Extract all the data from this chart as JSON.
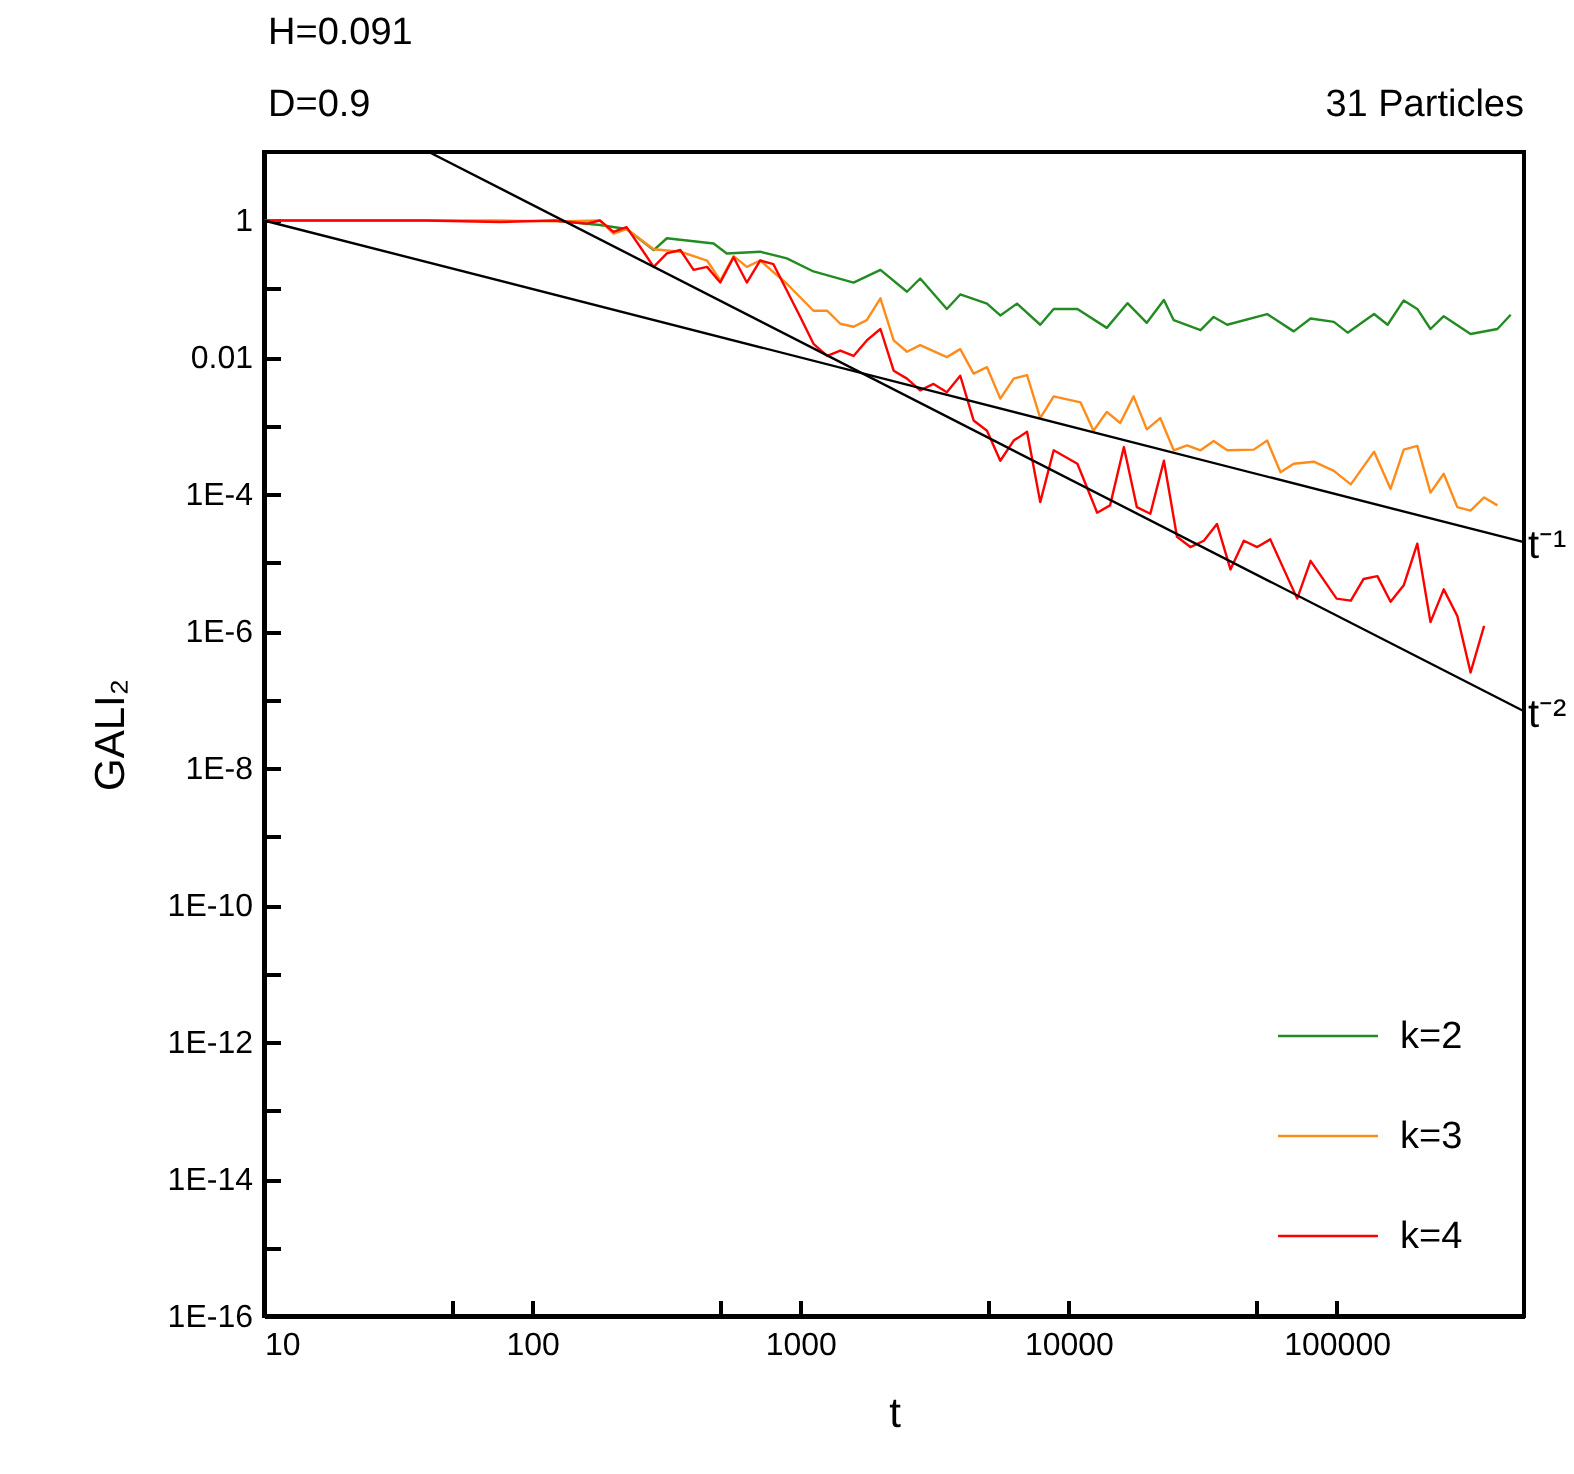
{
  "chart_data": {
    "type": "line",
    "xlabel": "t",
    "ylabel": "GALI₂",
    "log": "xy",
    "grid": false,
    "legend": "bottom right",
    "marker": "none",
    "line_style": "solid",
    "annotations": [
      "H=0.091",
      "D=0.9",
      "31 Particles"
    ],
    "xlim": [
      10,
      500000
    ],
    "xticks": [
      10,
      {
        "value": 50,
        "label": null
      },
      100,
      {
        "value": 500,
        "label": null
      },
      1000,
      {
        "value": 5000,
        "label": null
      },
      10000,
      {
        "value": 50000,
        "label": null
      },
      100000
    ],
    "ylim": [
      1e-16,
      10
    ],
    "yticks": [
      1,
      {
        "value": 0.1,
        "label": null
      },
      0.01,
      {
        "value": 0.001,
        "label": null
      },
      {
        "value": 0.0001,
        "label": "1E-4"
      },
      {
        "value": 1e-05,
        "label": null
      },
      {
        "value": 1e-06,
        "label": "1E-6"
      },
      {
        "value": 1e-07,
        "label": null
      },
      {
        "value": 1e-08,
        "label": "1E-8"
      },
      {
        "value": 1e-09,
        "label": null
      },
      {
        "value": 1e-10,
        "label": "1E-10"
      },
      {
        "value": 1e-11,
        "label": null
      },
      {
        "value": 1e-12,
        "label": "1E-12"
      },
      {
        "value": 1e-13,
        "label": null
      },
      {
        "value": 1e-14,
        "label": "1E-14"
      },
      {
        "value": 1e-15,
        "label": null
      },
      {
        "value": 1e-16,
        "label": "1E-16"
      }
    ],
    "series": [
      {
        "name": "k=2",
        "color": "#228b22",
        "x": [
          120,
          179,
          225,
          284,
          318,
          475,
          532,
          708,
          891,
          1120,
          1580,
          1990,
          2500,
          2800,
          3520,
          3950,
          4970,
          5570,
          6430,
          7850,
          8810,
          10800,
          13900,
          16600,
          19600,
          22700,
          24700,
          31100,
          34800,
          39100,
          55100,
          69200,
          80000,
          97700,
          110000,
          138000,
          155000,
          178000,
          200000,
          224000,
          251000,
          316000,
          398000,
          446000
        ],
        "values": [
          1,
          0.86,
          0.75,
          0.37,
          0.55,
          0.46,
          0.33,
          0.35,
          0.28,
          0.18,
          0.124,
          0.19,
          0.091,
          0.142,
          0.051,
          0.083,
          0.061,
          0.041,
          0.061,
          0.03,
          0.051,
          0.051,
          0.027,
          0.062,
          0.032,
          0.069,
          0.035,
          0.025,
          0.039,
          0.03,
          0.043,
          0.024,
          0.037,
          0.033,
          0.023,
          0.043,
          0.03,
          0.068,
          0.051,
          0.026,
          0.04,
          0.022,
          0.026,
          0.042
        ]
      },
      {
        "name": "k=3",
        "color": "#ff8c1a",
        "x": [
          10,
          40,
          76,
          120,
          179,
          201,
          225,
          284,
          357,
          449,
          503,
          564,
          632,
          708,
          891,
          1120,
          1260,
          1410,
          1580,
          1770,
          1990,
          2230,
          2500,
          2800,
          3520,
          3950,
          4430,
          4970,
          5570,
          6250,
          7010,
          7850,
          8810,
          11100,
          12400,
          13900,
          15600,
          17500,
          19600,
          22000,
          24700,
          27700,
          31100,
          34800,
          39100,
          49100,
          55100,
          61800,
          69200,
          82200,
          97700,
          113000,
          138000,
          159000,
          178000,
          200000,
          224000,
          251000,
          282000,
          316000,
          355000,
          398000
        ],
        "values": [
          1,
          1,
          1,
          0.97,
          1,
          0.64,
          0.75,
          0.38,
          0.35,
          0.26,
          0.133,
          0.3,
          0.21,
          0.26,
          0.119,
          0.048,
          0.048,
          0.031,
          0.028,
          0.035,
          0.073,
          0.0177,
          0.0121,
          0.0151,
          0.0101,
          0.0132,
          0.0058,
          0.0072,
          0.0025,
          0.0049,
          0.0055,
          0.0013,
          0.0027,
          0.0022,
          0.00085,
          0.0016,
          0.0011,
          0.0027,
          0.00089,
          0.0013,
          0.00044,
          0.00052,
          0.00044,
          0.0006,
          0.00044,
          0.00045,
          0.00061,
          0.00021,
          0.00028,
          0.0003,
          0.00022,
          0.00014,
          0.00042,
          0.00012,
          0.00045,
          0.00051,
          0.000106,
          0.0002,
          6.5e-05,
          5.8e-05,
          9e-05,
          6.9e-05
        ]
      },
      {
        "name": "k=4",
        "color": "#ff0000",
        "x": [
          10,
          40,
          76,
          120,
          160,
          179,
          201,
          225,
          253,
          284,
          318,
          357,
          400,
          449,
          503,
          564,
          632,
          708,
          794,
          891,
          1000,
          1120,
          1260,
          1410,
          1580,
          1770,
          1990,
          2230,
          2500,
          2800,
          3140,
          3520,
          3950,
          4430,
          4970,
          5570,
          6250,
          7010,
          7850,
          8810,
          10800,
          12800,
          14300,
          16100,
          18000,
          20200,
          22700,
          25400,
          28500,
          32000,
          35800,
          40200,
          45100,
          50600,
          56600,
          71300,
          80000,
          100000,
          113000,
          126000,
          142000,
          159000,
          178000,
          200000,
          224000,
          251000,
          282000,
          316000,
          355000
        ],
        "values": [
          1,
          1,
          0.95,
          1,
          0.9,
          1,
          0.68,
          0.8,
          0.41,
          0.21,
          0.33,
          0.37,
          0.19,
          0.21,
          0.124,
          0.29,
          0.124,
          0.26,
          0.23,
          0.095,
          0.039,
          0.0158,
          0.0105,
          0.0126,
          0.0105,
          0.0177,
          0.026,
          0.0064,
          0.0049,
          0.0033,
          0.0041,
          0.0031,
          0.0054,
          0.0012,
          0.00085,
          0.00031,
          0.00061,
          0.00082,
          7.7e-05,
          0.00044,
          0.00028,
          5.4e-05,
          6.9e-05,
          0.00049,
          6.5e-05,
          5.2e-05,
          0.00031,
          2.4e-05,
          1.7e-05,
          2.1e-05,
          3.7e-05,
          8e-06,
          2.1e-05,
          1.7e-05,
          2.2e-05,
          3e-06,
          1.07e-05,
          3e-06,
          2.8e-06,
          5.8e-06,
          6.4e-06,
          2.7e-06,
          4.7e-06,
          1.9e-05,
          1.36e-06,
          4.1e-06,
          1.67e-06,
          2.5e-07,
          1.2e-06
        ]
      },
      {
        "name": "t⁻¹",
        "type": "line",
        "color": "#000000",
        "x": [
          10,
          500000
        ],
        "values": [
          1,
          2e-05
        ]
      },
      {
        "name": "t⁻²",
        "type": "line",
        "color": "#000000",
        "x": [
          41.2,
          500000
        ],
        "values": [
          10,
          6.8e-08
        ]
      }
    ]
  }
}
